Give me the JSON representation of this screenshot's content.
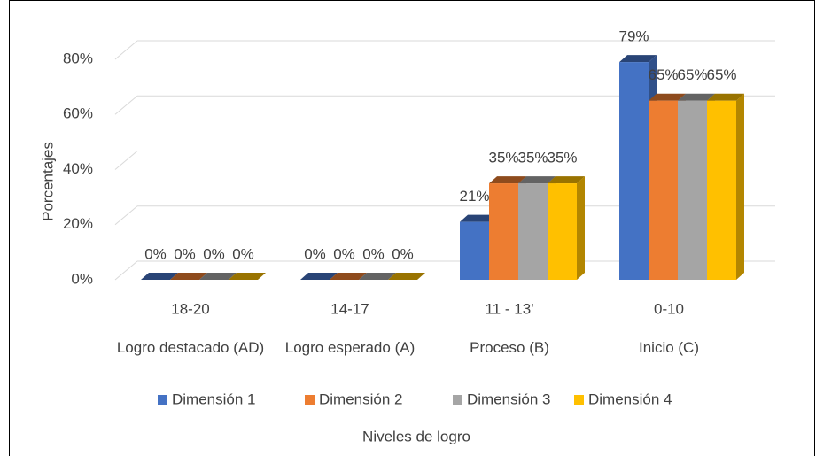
{
  "chart_data": {
    "type": "bar3d",
    "y_axis_title": "Porcentajes",
    "x_axis_title": "Niveles de logro",
    "categories": [
      "18-20",
      "14-17",
      "11 - 13'",
      "0-10"
    ],
    "category_groups": [
      "Logro destacado (AD)",
      "Logro esperado (A)",
      "Proceso (B)",
      "Inicio (C)"
    ],
    "series": [
      {
        "name": "Dimensión 1",
        "color": "#4472c4",
        "values": [
          0,
          0,
          21,
          79
        ],
        "value_labels": [
          "0%",
          "0%",
          "21%",
          "79%"
        ]
      },
      {
        "name": "Dimensión 2",
        "color": "#ed7d31",
        "values": [
          0,
          0,
          35,
          65
        ],
        "value_labels": [
          "0%",
          "0%",
          "35%",
          "65%"
        ]
      },
      {
        "name": "Dimensión 3",
        "color": "#a5a5a5",
        "values": [
          0,
          0,
          35,
          65
        ],
        "value_labels": [
          "0%",
          "0%",
          "35%",
          "65%"
        ]
      },
      {
        "name": "Dimensión 4",
        "color": "#ffc000",
        "values": [
          0,
          0,
          35,
          65
        ],
        "value_labels": [
          "0%",
          "0%",
          "35%",
          "65%"
        ]
      }
    ],
    "ylim": [
      0,
      80
    ],
    "yticks": [
      {
        "value": 0,
        "label": "0%"
      },
      {
        "value": 20,
        "label": "20%"
      },
      {
        "value": 40,
        "label": "40%"
      },
      {
        "value": 60,
        "label": "60%"
      },
      {
        "value": 80,
        "label": "80%"
      }
    ],
    "grid": true,
    "legend": "bottom"
  }
}
